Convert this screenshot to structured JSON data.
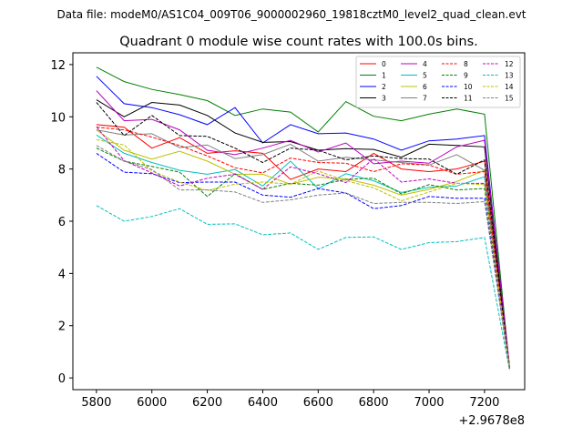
{
  "figure": {
    "suptitle": "Data file: modeM0/AS1C04_009T06_9000002960_19818cztM0_level2_quad_clean.evt"
  },
  "chart_data": {
    "type": "line",
    "title": "Quadrant 0 module wise count rates with 100.0s bins.",
    "xlabel": "",
    "ylabel": "",
    "x_offset_label": "+2.9678e8",
    "x": [
      5800,
      5900,
      6000,
      6100,
      6200,
      6300,
      6400,
      6500,
      6600,
      6700,
      6800,
      6900,
      7000,
      7100,
      7200,
      7290
    ],
    "xlim": [
      5715,
      7345
    ],
    "ylim": [
      -0.45,
      12.45
    ],
    "xticks": [
      5800,
      6000,
      6200,
      6400,
      6600,
      6800,
      7000,
      7200
    ],
    "yticks": [
      0,
      2,
      4,
      6,
      8,
      10,
      12
    ],
    "legend_location": "top-right",
    "series": [
      {
        "name": "0",
        "color": "#ff0000",
        "dash": "solid",
        "values": [
          9.7,
          9.6,
          8.8,
          9.2,
          8.6,
          8.7,
          8.6,
          7.6,
          8.0,
          7.9,
          8.6,
          8.0,
          7.9,
          8.0,
          8.3,
          0.4
        ]
      },
      {
        "name": "1",
        "color": "#008000",
        "dash": "solid",
        "values": [
          11.9,
          11.35,
          11.05,
          10.85,
          10.62,
          10.05,
          10.3,
          10.18,
          9.42,
          10.58,
          10.02,
          9.85,
          10.1,
          10.3,
          10.1,
          0.4
        ]
      },
      {
        "name": "2",
        "color": "#0000ff",
        "dash": "solid",
        "values": [
          11.55,
          10.5,
          10.35,
          10.08,
          9.7,
          10.35,
          9.0,
          9.7,
          9.35,
          9.38,
          9.15,
          8.72,
          9.08,
          9.15,
          9.28,
          0.4
        ]
      },
      {
        "name": "3",
        "color": "#000000",
        "dash": "solid",
        "values": [
          10.65,
          10.0,
          10.55,
          10.45,
          10.05,
          9.38,
          9.02,
          9.05,
          8.72,
          8.78,
          8.75,
          8.45,
          8.95,
          8.9,
          8.85,
          0.35
        ]
      },
      {
        "name": "4",
        "color": "#c000c0",
        "dash": "solid",
        "values": [
          11.0,
          9.85,
          9.9,
          9.5,
          8.72,
          8.55,
          8.8,
          9.1,
          8.65,
          9.0,
          8.2,
          8.3,
          8.22,
          8.85,
          9.1,
          0.5
        ]
      },
      {
        "name": "5",
        "color": "#00bfbf",
        "dash": "solid",
        "values": [
          9.3,
          8.6,
          8.25,
          7.95,
          7.8,
          7.98,
          7.35,
          8.3,
          7.25,
          7.82,
          7.55,
          7.1,
          7.3,
          7.35,
          7.7,
          0.35
        ]
      },
      {
        "name": "6",
        "color": "#bfbf00",
        "dash": "solid",
        "values": [
          9.5,
          8.72,
          8.38,
          8.68,
          8.3,
          7.8,
          7.8,
          7.42,
          7.68,
          7.62,
          7.38,
          7.0,
          7.22,
          7.52,
          7.95,
          0.4
        ]
      },
      {
        "name": "7",
        "color": "#808080",
        "dash": "solid",
        "values": [
          9.5,
          9.3,
          9.35,
          8.82,
          8.92,
          8.4,
          8.55,
          8.95,
          8.3,
          8.45,
          8.35,
          8.25,
          8.15,
          8.55,
          7.95,
          0.4
        ]
      },
      {
        "name": "8",
        "color": "#ff0000",
        "dash": "dashed",
        "values": [
          9.6,
          9.5,
          9.22,
          8.9,
          8.5,
          8.05,
          7.85,
          8.42,
          8.25,
          8.22,
          7.9,
          8.2,
          8.15,
          7.8,
          7.9,
          0.4
        ]
      },
      {
        "name": "9",
        "color": "#008000",
        "dash": "dashed",
        "values": [
          8.8,
          8.3,
          8.1,
          7.88,
          6.95,
          7.82,
          7.22,
          7.45,
          7.38,
          7.6,
          7.65,
          7.05,
          7.4,
          7.2,
          7.25,
          0.35
        ]
      },
      {
        "name": "10",
        "color": "#0000ff",
        "dash": "dashed",
        "values": [
          8.6,
          7.88,
          7.82,
          7.48,
          7.5,
          7.5,
          7.0,
          6.92,
          7.25,
          7.08,
          6.48,
          6.6,
          6.95,
          6.88,
          6.88,
          0.35
        ]
      },
      {
        "name": "11",
        "color": "#000000",
        "dash": "dashed",
        "values": [
          10.55,
          9.28,
          10.05,
          9.28,
          9.25,
          8.8,
          8.25,
          8.8,
          8.72,
          8.35,
          8.5,
          8.4,
          8.38,
          7.8,
          8.35,
          0.4
        ]
      },
      {
        "name": "12",
        "color": "#c000c0",
        "dash": "dashed",
        "values": [
          9.62,
          8.32,
          7.85,
          7.35,
          7.65,
          7.8,
          7.22,
          8.08,
          7.82,
          7.48,
          8.4,
          7.5,
          7.62,
          7.45,
          7.45,
          0.35
        ]
      },
      {
        "name": "13",
        "color": "#00bfbf",
        "dash": "dashed",
        "values": [
          6.6,
          6.0,
          6.18,
          6.48,
          5.88,
          5.9,
          5.48,
          5.55,
          4.92,
          5.38,
          5.4,
          4.92,
          5.18,
          5.22,
          5.38,
          0.3
        ]
      },
      {
        "name": "14",
        "color": "#bfbf00",
        "dash": "dashed",
        "values": [
          9.12,
          8.92,
          7.92,
          7.5,
          7.18,
          7.42,
          7.5,
          7.42,
          7.92,
          7.55,
          7.28,
          6.78,
          7.12,
          7.45,
          7.4,
          0.4
        ]
      },
      {
        "name": "15",
        "color": "#808080",
        "dash": "dashed",
        "values": [
          8.9,
          8.3,
          7.98,
          7.2,
          7.2,
          7.12,
          6.72,
          6.82,
          7.0,
          7.08,
          6.68,
          6.72,
          6.72,
          6.68,
          6.75,
          0.35
        ]
      }
    ]
  }
}
